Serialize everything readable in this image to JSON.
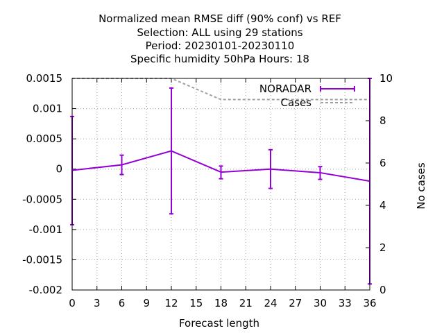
{
  "chart_data": {
    "type": "line",
    "title_lines": [
      "Normalized mean RMSE diff (90% conf) vs REF",
      "Selection: ALL using    29 stations",
      "Period: 20230101-20230110",
      "Specific humidity 50hPa   Hours:  18"
    ],
    "xlabel": "Forecast length",
    "ylabel": "",
    "y2label": "No cases",
    "xlim": [
      0,
      36
    ],
    "ylim": [
      -0.002,
      0.0015
    ],
    "y2lim": [
      0,
      10
    ],
    "x_ticks": [
      "0",
      "3",
      "6",
      "9",
      "12",
      "15",
      "18",
      "21",
      "24",
      "27",
      "30",
      "33",
      "36"
    ],
    "y_ticks": [
      "0.0015",
      "0.001",
      "0.0005",
      "0",
      "-0.0005",
      "-0.001",
      "-0.0015",
      "-0.002"
    ],
    "y2_ticks": [
      "10",
      "8",
      "6",
      "4",
      "2",
      "0"
    ],
    "grid": true,
    "legend_position": "top-right",
    "series": [
      {
        "name": "NORADAR",
        "color": "#9400d3",
        "axis": "y",
        "style": "line-errorbars",
        "x": [
          0,
          6,
          12,
          18,
          24,
          30,
          36
        ],
        "y": [
          -2e-05,
          7e-05,
          0.0003,
          -5e-05,
          0.0,
          -6e-05,
          -0.0002
        ],
        "err_low": [
          -0.00092,
          -9e-05,
          -0.00074,
          -0.00016,
          -0.00032,
          -0.00017,
          -0.0019
        ],
        "err_high": [
          0.00087,
          0.00023,
          0.00134,
          5e-05,
          0.00032,
          4e-05,
          0.0015
        ]
      },
      {
        "name": "Cases",
        "color": "#a0a0a0",
        "axis": "y2",
        "style": "dashed",
        "x": [
          0,
          6,
          12,
          18,
          24,
          30,
          36
        ],
        "y": [
          10,
          10,
          10,
          9,
          9,
          9,
          9
        ]
      }
    ]
  }
}
